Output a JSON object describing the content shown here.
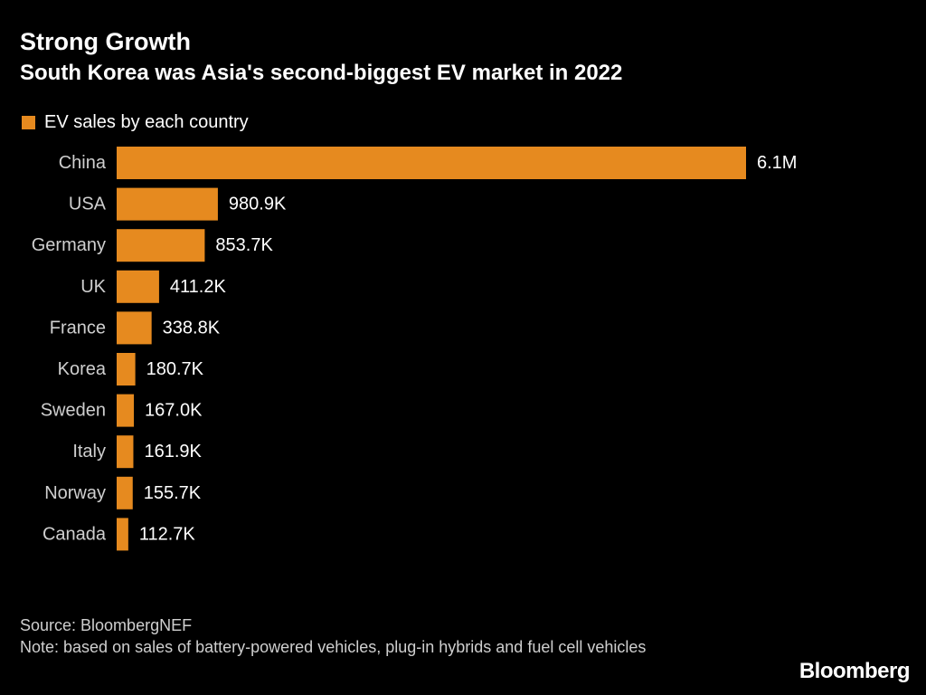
{
  "header": {
    "title": "Strong Growth",
    "subtitle": "South Korea was Asia's second-biggest EV market in 2022"
  },
  "legend": {
    "label": "EV sales by each country",
    "color": "#e68a1f"
  },
  "chart_data": {
    "type": "bar",
    "orientation": "horizontal",
    "title": "Strong Growth",
    "subtitle": "South Korea was Asia's second-biggest EV market in 2022",
    "xlabel": "",
    "ylabel": "",
    "legend_position": "top-left",
    "grid": false,
    "units": "EV sales",
    "xlim": [
      0,
      6100000
    ],
    "series": [
      {
        "name": "EV sales by each country",
        "color": "#e68a1f",
        "values": [
          6100000,
          980900,
          853700,
          411200,
          338800,
          180700,
          167000,
          161900,
          155700,
          112700
        ]
      }
    ],
    "categories": [
      "China",
      "USA",
      "Germany",
      "UK",
      "France",
      "Korea",
      "Sweden",
      "Italy",
      "Norway",
      "Canada"
    ],
    "data_labels": [
      "6.1M",
      "980.9K",
      "853.7K",
      "411.2K",
      "338.8K",
      "180.7K",
      "167.0K",
      "161.9K",
      "155.7K",
      "112.7K"
    ]
  },
  "footer": {
    "source": "Source: BloombergNEF",
    "note": "Note: based on sales of battery-powered vehicles, plug-in hybrids and fuel cell vehicles",
    "brand": "Bloomberg"
  },
  "colors": {
    "background": "#000000",
    "text": "#ffffff",
    "muted_text": "#cfcfcf",
    "bar": "#e68a1f"
  }
}
